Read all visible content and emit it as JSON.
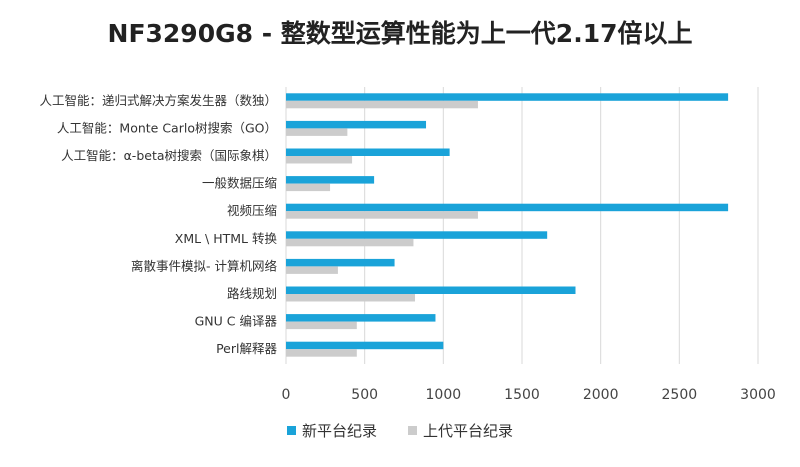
{
  "chart_data": {
    "type": "bar",
    "orientation": "horizontal",
    "title": "NF3290G8 - 整数型运算性能为上一代2.17倍以上",
    "categories": [
      "人工智能：递归式解决方案发生器（数独）",
      "人工智能：Monte Carlo树搜索（GO）",
      "人工智能：α-beta树搜索（国际象棋）",
      "一般数据压缩",
      "视频压缩",
      "XML \\ HTML 转换",
      "离散事件模拟- 计算机网络",
      "路线规划",
      "GNU C 编译器",
      "Perl解释器"
    ],
    "series": [
      {
        "name": "新平台纪录",
        "color": "#1aa3d9",
        "values": [
          2810,
          890,
          1040,
          560,
          2810,
          1660,
          690,
          1840,
          950,
          1000
        ]
      },
      {
        "name": "上代平台纪录",
        "color": "#cccccc",
        "values": [
          1220,
          390,
          420,
          280,
          1220,
          810,
          330,
          820,
          450,
          450
        ]
      }
    ],
    "xlim": [
      0,
      3000
    ],
    "xticks": [
      "0",
      "500",
      "1000",
      "1500",
      "2000",
      "2500",
      "3000"
    ],
    "grid": "vertical",
    "legend_position": "bottom"
  }
}
